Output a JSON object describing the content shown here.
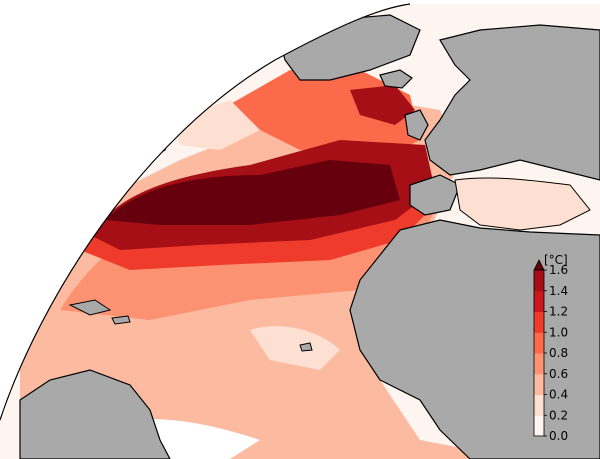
{
  "colorbar": {
    "unit": "[°C]",
    "min": 0.0,
    "max": 1.6,
    "extend": "max",
    "ticks": [
      "0.0",
      "0.2",
      "0.4",
      "0.6",
      "0.8",
      "1.0",
      "1.2",
      "1.4",
      "1.6"
    ],
    "colors": [
      "#fff5f0",
      "#fee0d2",
      "#fcbba1",
      "#fc9272",
      "#fb6a4a",
      "#ef3b2c",
      "#cb181d",
      "#a50f15",
      "#67000d"
    ]
  },
  "map": {
    "region": "North Atlantic",
    "land_color": "#a9a9a9",
    "coastline_color": "#000000"
  }
}
